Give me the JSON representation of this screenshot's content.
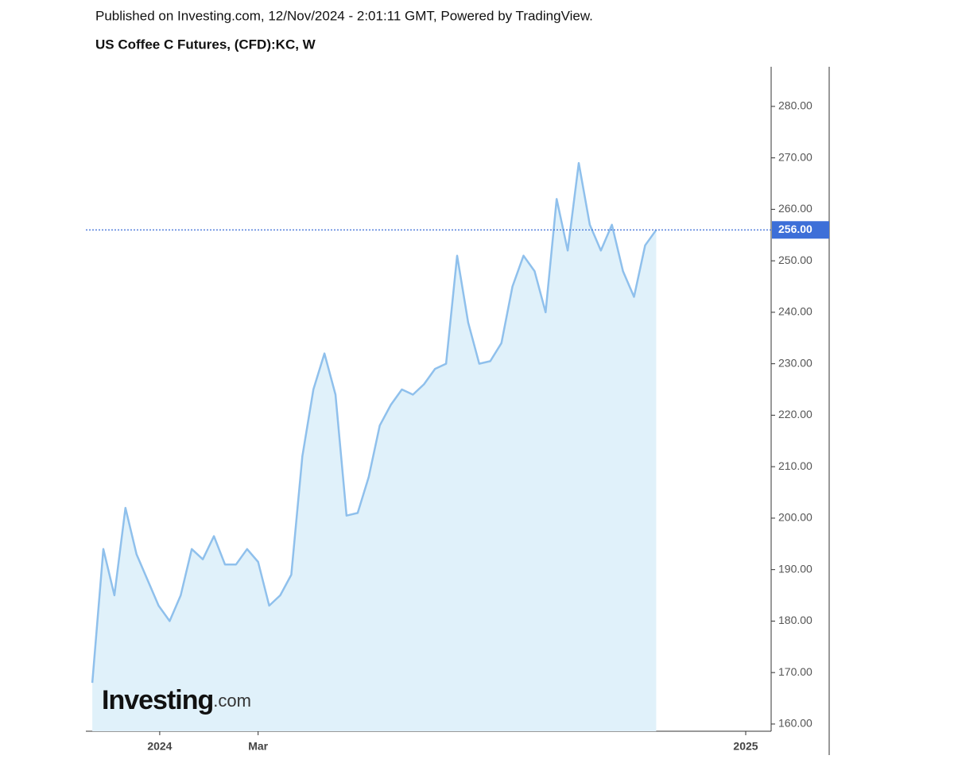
{
  "header": {
    "published": "Published on Investing.com, 12/Nov/2024 - 2:01:11 GMT, Powered by TradingView."
  },
  "chart_data": {
    "type": "area",
    "title": "US Coffee C Futures, (CFD):KC, W",
    "logo": {
      "main": "Investing",
      "suffix": ".com"
    },
    "x": [
      0,
      1,
      2,
      3,
      4,
      5,
      6,
      7,
      8,
      9,
      10,
      11,
      12,
      13,
      14,
      15,
      16,
      17,
      18,
      19,
      20,
      21,
      22,
      23,
      24,
      25,
      26,
      27,
      28,
      29,
      30,
      31,
      32,
      33,
      34,
      35,
      36,
      37,
      38,
      39,
      40,
      41,
      42,
      43,
      44,
      45,
      46,
      47,
      48,
      49,
      50,
      51
    ],
    "values": [
      168,
      194,
      185,
      202,
      193,
      188,
      183,
      180,
      185,
      194,
      192,
      196.5,
      191,
      191,
      194,
      191.5,
      183,
      185,
      189,
      212,
      225,
      232,
      224,
      200.5,
      201,
      208,
      218,
      222,
      225,
      224,
      226,
      229,
      230,
      251,
      238,
      230,
      230.5,
      234,
      245,
      251,
      248,
      240,
      262,
      252,
      269,
      257,
      252,
      257,
      248,
      243,
      253,
      256
    ],
    "color": "#8fc0ec",
    "fill_color": "#e0f1fa",
    "xlim": [
      -0.58,
      61.4
    ],
    "xticks": [
      {
        "value": 6.1,
        "label": "2024"
      },
      {
        "value": 15.0,
        "label": "Mar"
      },
      {
        "value": 59.1,
        "label": "2025"
      }
    ],
    "ylim": [
      158.6,
      287.7
    ],
    "yticks": [
      {
        "value": 160,
        "label": "160.00"
      },
      {
        "value": 170,
        "label": "170.00"
      },
      {
        "value": 180,
        "label": "180.00"
      },
      {
        "value": 190,
        "label": "190.00"
      },
      {
        "value": 200,
        "label": "200.00"
      },
      {
        "value": 210,
        "label": "210.00"
      },
      {
        "value": 220,
        "label": "220.00"
      },
      {
        "value": 230,
        "label": "230.00"
      },
      {
        "value": 240,
        "label": "240.00"
      },
      {
        "value": 250,
        "label": "250.00"
      },
      {
        "value": 260,
        "label": "260.00"
      },
      {
        "value": 270,
        "label": "270.00"
      },
      {
        "value": 280,
        "label": "280.00"
      }
    ],
    "last_value": {
      "value": 256,
      "label": "256.00"
    },
    "last_value_color": "#3d6fd8",
    "grid": false
  }
}
